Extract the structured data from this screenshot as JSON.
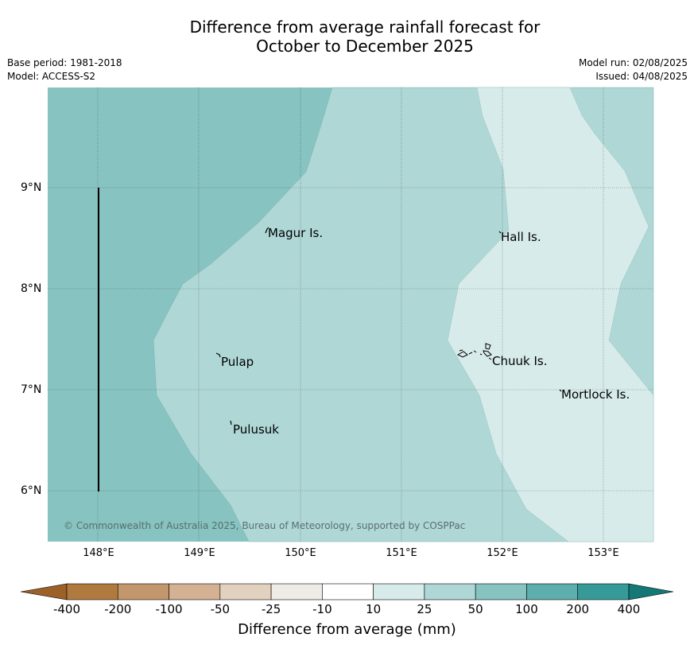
{
  "title_line1": "Difference from average rainfall forecast for",
  "title_line2": "October to December 2025",
  "meta_left": {
    "base_period": "Base period: 1981-2018",
    "model": "Model: ACCESS-S2"
  },
  "meta_right": {
    "model_run": "Model run: 02/08/2025",
    "issued": "Issued: 04/08/2025"
  },
  "lat_labels": [
    "9°N",
    "8°N",
    "7°N",
    "6°N"
  ],
  "lon_labels": [
    "148°E",
    "149°E",
    "150°E",
    "151°E",
    "152°E",
    "153°E"
  ],
  "places": {
    "magur": "Magur Is.",
    "hall": "Hall Is.",
    "pulap": "Pulap",
    "chuuk": "Chuuk Is.",
    "mortlock": "Mortlock Is.",
    "pulusuk": "Pulusuk"
  },
  "copyright": "© Commonwealth of Australia 2025, Bureau of Meteorology, supported by COSPPac",
  "colorbar": {
    "title": "Difference from average (mm)",
    "labels": [
      "-400",
      "-200",
      "-100",
      "-50",
      "-25",
      "-10",
      "10",
      "25",
      "50",
      "100",
      "200",
      "400"
    ],
    "colors": [
      "#9b6127",
      "#b07a3e",
      "#c3966c",
      "#d4b192",
      "#e3d1c0",
      "#efebe7",
      "#ffffff",
      "#d6ebea",
      "#aed7d6",
      "#86c3c1",
      "#5eaead",
      "#369a99",
      "#137876"
    ]
  },
  "map_colors": {
    "band_50_100": "#86c3c1",
    "band_25_50": "#aed7d6",
    "band_10_25": "#d6ebea"
  }
}
